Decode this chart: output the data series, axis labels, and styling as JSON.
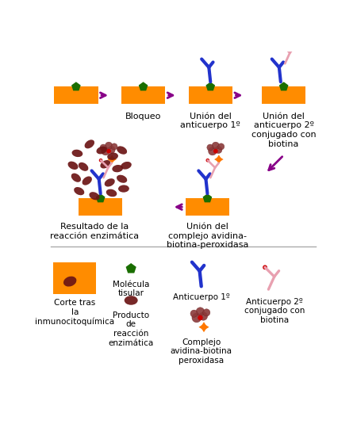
{
  "bg_color": "#ffffff",
  "orange_color": "#FF8C00",
  "green_color": "#1a6e00",
  "blue_color": "#2233cc",
  "pink_color": "#e8a0b0",
  "dark_red_blob": "#7B2020",
  "red_dot": "#cc0000",
  "purple_arrow": "#880088",
  "abc_orange": "#FF7700",
  "brown_blob": "#8B3A3A",
  "labels": {
    "bloqueo": "Bloqueo",
    "union1": "Unión del\nanticuerpo 1º",
    "union2": "Unión del\nanticuerpo 2º\nconjugado con\nbiotina",
    "union_abc": "Unión del\ncomplejo avidina-\nbiotina-peroxidasa",
    "resultado": "Resultado de la\nreacción enzimática",
    "leg_corte": "Corte tras\nla\ninmunocitoquímica",
    "leg_molecula": "Molécula\ntisular",
    "leg_producto": "Producto\nde\nreacción\nenzimática",
    "leg_anticuerpo1": "Anticuerpo 1º",
    "leg_abc": "Complejo\navidina-biotina\nperoxidasa",
    "leg_anticuerpo2": "Anticuerpo 2º\nconjugado con\nbiotina"
  }
}
